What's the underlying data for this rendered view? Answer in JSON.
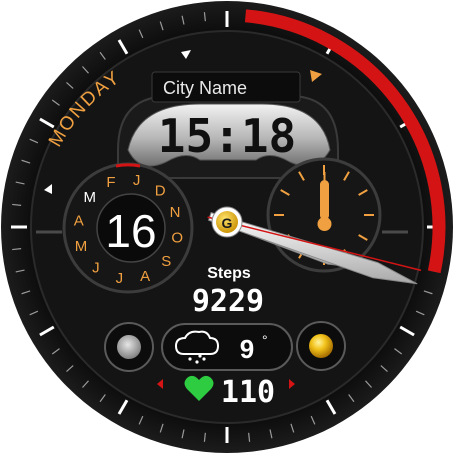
{
  "watchface": {
    "day_of_week": "MONDAY",
    "city_name": "City Name",
    "time": "15:18",
    "date_day": "16",
    "month_letters": [
      "J",
      "F",
      "M",
      "A",
      "M",
      "J",
      "J",
      "A",
      "S",
      "O",
      "N",
      "D"
    ],
    "current_month_letter": "M",
    "steps_label": "Steps",
    "steps_value": "9229",
    "weather_temp": "9",
    "weather_degree_symbol": "°",
    "heart_rate": "110",
    "analog_hour": 3,
    "analog_minute": 18,
    "battery_level_fraction": 0.27,
    "colors": {
      "accent_orange": "#f0a040",
      "accent_red": "#d41414",
      "heart_green": "#2ecc40",
      "center_gold": "#f2b400"
    },
    "icons": [
      "weather-cloud-rain-icon",
      "heart-icon",
      "moon-phase-icon",
      "sun-icon",
      "thermometer-icon",
      "center-logo-icon"
    ]
  }
}
